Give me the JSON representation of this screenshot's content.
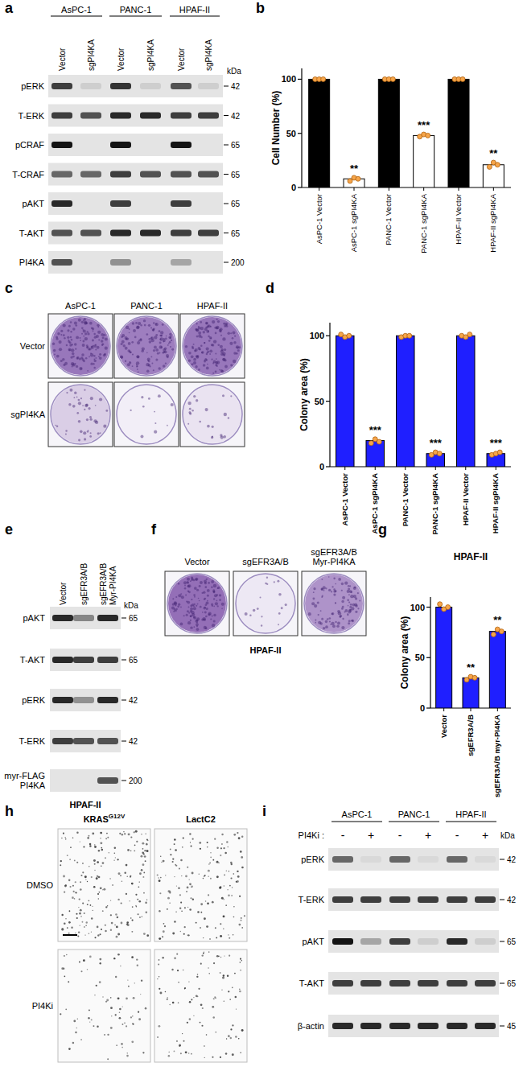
{
  "panel_labels": [
    "a",
    "b",
    "c",
    "d",
    "e",
    "f",
    "g",
    "h",
    "i"
  ],
  "chart_data": [
    {
      "type": "bar",
      "y_label": "Cell Number (%)",
      "categories": [
        "AsPC-1 Vector",
        "AsPC-1 sgPI4KA",
        "PANC-1 Vector",
        "PANC-1 sgPI4KA",
        "HPAF-II Vector",
        "HPAF-II sgPI4KA"
      ],
      "values": [
        100,
        8,
        100,
        48,
        100,
        21
      ],
      "colors": [
        "#000000",
        "#ffffff",
        "#000000",
        "#ffffff",
        "#000000",
        "#ffffff"
      ],
      "replicates": [
        [
          100,
          100,
          100
        ],
        [
          6,
          9,
          8
        ],
        [
          100,
          100,
          100
        ],
        [
          47,
          49,
          48
        ],
        [
          100,
          100,
          100
        ],
        [
          19,
          23,
          21
        ]
      ],
      "annotations": [
        null,
        "**",
        null,
        "***",
        null,
        "**"
      ],
      "ylim": [
        0,
        110
      ],
      "yticks": [
        0,
        50,
        100
      ]
    },
    {
      "type": "bar",
      "y_label": "Colony area (%)",
      "categories": [
        "AsPC-1 Vector",
        "AsPC-1 sgPI4KA",
        "PANC-1 Vector",
        "PANC-1 sgPI4KA",
        "HPAF-II Vector",
        "HPAF-II sgPI4KA"
      ],
      "values": [
        100,
        20,
        100,
        10,
        100,
        10
      ],
      "color": "#1f1fff",
      "replicates": [
        [
          101,
          99,
          100
        ],
        [
          18,
          21,
          19
        ],
        [
          99,
          100,
          100
        ],
        [
          9,
          11,
          10
        ],
        [
          100,
          99,
          101
        ],
        [
          9,
          10,
          11
        ]
      ],
      "annotations": [
        null,
        "***",
        null,
        "***",
        null,
        "***"
      ],
      "ylim": [
        0,
        110
      ],
      "yticks": [
        0,
        50,
        100
      ]
    },
    {
      "type": "bar",
      "title": "HPAF-II",
      "y_label": "Colony area (%)",
      "categories": [
        "Vector",
        "sgEFR3A/B",
        "sgEFR3A/B myr-PI4KA"
      ],
      "values": [
        100,
        30,
        76
      ],
      "color": "#1f1fff",
      "replicates": [
        [
          103,
          98,
          100
        ],
        [
          28,
          31,
          30
        ],
        [
          73,
          78,
          76
        ]
      ],
      "annotations": [
        null,
        "**",
        "**"
      ],
      "ylim": [
        0,
        110
      ],
      "yticks": [
        0,
        50,
        100
      ]
    }
  ],
  "blots": {
    "a": {
      "columns": [
        {
          "label": "AsPC-1",
          "lanes": [
            "Vector",
            "sgPI4KA"
          ]
        },
        {
          "label": "PANC-1",
          "lanes": [
            "Vector",
            "sgPI4KA"
          ]
        },
        {
          "label": "HPAF-II",
          "lanes": [
            "Vector",
            "sgPI4KA"
          ]
        }
      ],
      "unit": "kDa",
      "rows": [
        {
          "label": [
            "pERK"
          ],
          "kDa": 42,
          "bands": [
            0.8,
            0.1,
            0.85,
            0.1,
            0.7,
            0.1
          ]
        },
        {
          "label": [
            "T-ERK"
          ],
          "kDa": 42,
          "bands": [
            0.8,
            0.7,
            0.9,
            0.9,
            0.8,
            0.8
          ]
        },
        {
          "label": [
            "pCRAF"
          ],
          "kDa": 65,
          "bands": [
            1,
            0,
            1,
            0,
            1,
            0
          ]
        },
        {
          "label": [
            "T-CRAF"
          ],
          "kDa": 65,
          "bands": [
            0.6,
            0.6,
            0.8,
            0.7,
            0.7,
            0.7
          ]
        },
        {
          "label": [
            "pAKT"
          ],
          "kDa": 65,
          "bands": [
            0.9,
            0,
            0.8,
            0,
            0.8,
            0
          ]
        },
        {
          "label": [
            "T-AKT"
          ],
          "kDa": 65,
          "bands": [
            0.7,
            0.7,
            0.9,
            0.9,
            0.8,
            0.8
          ]
        },
        {
          "label": [
            "PI4KA"
          ],
          "kDa": 200,
          "bands": [
            0.7,
            0,
            0.4,
            0,
            0.3,
            0
          ]
        }
      ]
    },
    "e": {
      "lanes": [
        [
          "Vector"
        ],
        [
          "sgEFR3A/B"
        ],
        [
          "sgEFR3A/B",
          "Myr-PI4KA"
        ]
      ],
      "unit": "kDa",
      "rows": [
        {
          "label": [
            "pAKT"
          ],
          "kDa": 65,
          "bands": [
            0.9,
            0.45,
            0.9
          ]
        },
        {
          "label": [
            "T-AKT"
          ],
          "kDa": 65,
          "bands": [
            0.9,
            0.8,
            0.8
          ]
        },
        {
          "label": [
            "pERK"
          ],
          "kDa": 42,
          "bands": [
            0.9,
            0.4,
            0.9
          ]
        },
        {
          "label": [
            "T-ERK"
          ],
          "kDa": 42,
          "bands": [
            0.8,
            0.7,
            0.7
          ]
        },
        {
          "label": [
            "myr-FLAG",
            "PI4KA"
          ],
          "kDa": 200,
          "bands": [
            0,
            0,
            0.7
          ]
        }
      ],
      "caption": "HPAF-II"
    },
    "i": {
      "columns": [
        {
          "label": "AsPC-1"
        },
        {
          "label": "PANC-1"
        },
        {
          "label": "HPAF-II"
        }
      ],
      "treatment": {
        "label": "PI4Ki :",
        "lanes": [
          "-",
          "+",
          "-",
          "+",
          "-",
          "+"
        ]
      },
      "unit": "kDa",
      "rows": [
        {
          "label": [
            "pERK"
          ],
          "kDa": 42,
          "bands": [
            0.6,
            0.05,
            0.6,
            0.05,
            0.6,
            0.05
          ]
        },
        {
          "label": [
            "T-ERK"
          ],
          "kDa": 42,
          "bands": [
            0.8,
            0.8,
            0.8,
            0.8,
            0.8,
            0.8
          ]
        },
        {
          "label": [
            "pAKT"
          ],
          "kDa": 65,
          "bands": [
            1,
            0.3,
            0.8,
            0.1,
            0.9,
            0.1
          ]
        },
        {
          "label": [
            "T-AKT"
          ],
          "kDa": 65,
          "bands": [
            0.8,
            0.8,
            0.8,
            0.8,
            0.8,
            0.8
          ]
        },
        {
          "label": [
            "β-actin"
          ],
          "kDa": 45,
          "bands": [
            0.9,
            0.9,
            0.9,
            0.9,
            0.9,
            0.9
          ]
        }
      ]
    }
  },
  "colonies": {
    "c": {
      "columns": [
        "AsPC-1",
        "PANC-1",
        "HPAF-II"
      ],
      "rows": [
        {
          "label": "Vector",
          "density": [
            0.9,
            0.85,
            0.9
          ]
        },
        {
          "label": "sgPI4KA",
          "density": [
            0.3,
            0.08,
            0.15
          ]
        }
      ]
    },
    "f": {
      "columns": [
        [
          "Vector"
        ],
        [
          "sgEFR3A/B"
        ],
        [
          "sgEFR3A/B",
          "Myr-PI4KA"
        ]
      ],
      "density": [
        0.95,
        0.12,
        0.7
      ],
      "caption": "HPAF-II"
    }
  },
  "images_h": {
    "columns": [
      {
        "text": "KRAS",
        "sup": "G12V"
      },
      {
        "text": "LactC2"
      }
    ],
    "rows": [
      "DMSO",
      "PI4Ki"
    ],
    "density": [
      [
        0.8,
        0.6
      ],
      [
        0.3,
        0.4
      ]
    ]
  }
}
